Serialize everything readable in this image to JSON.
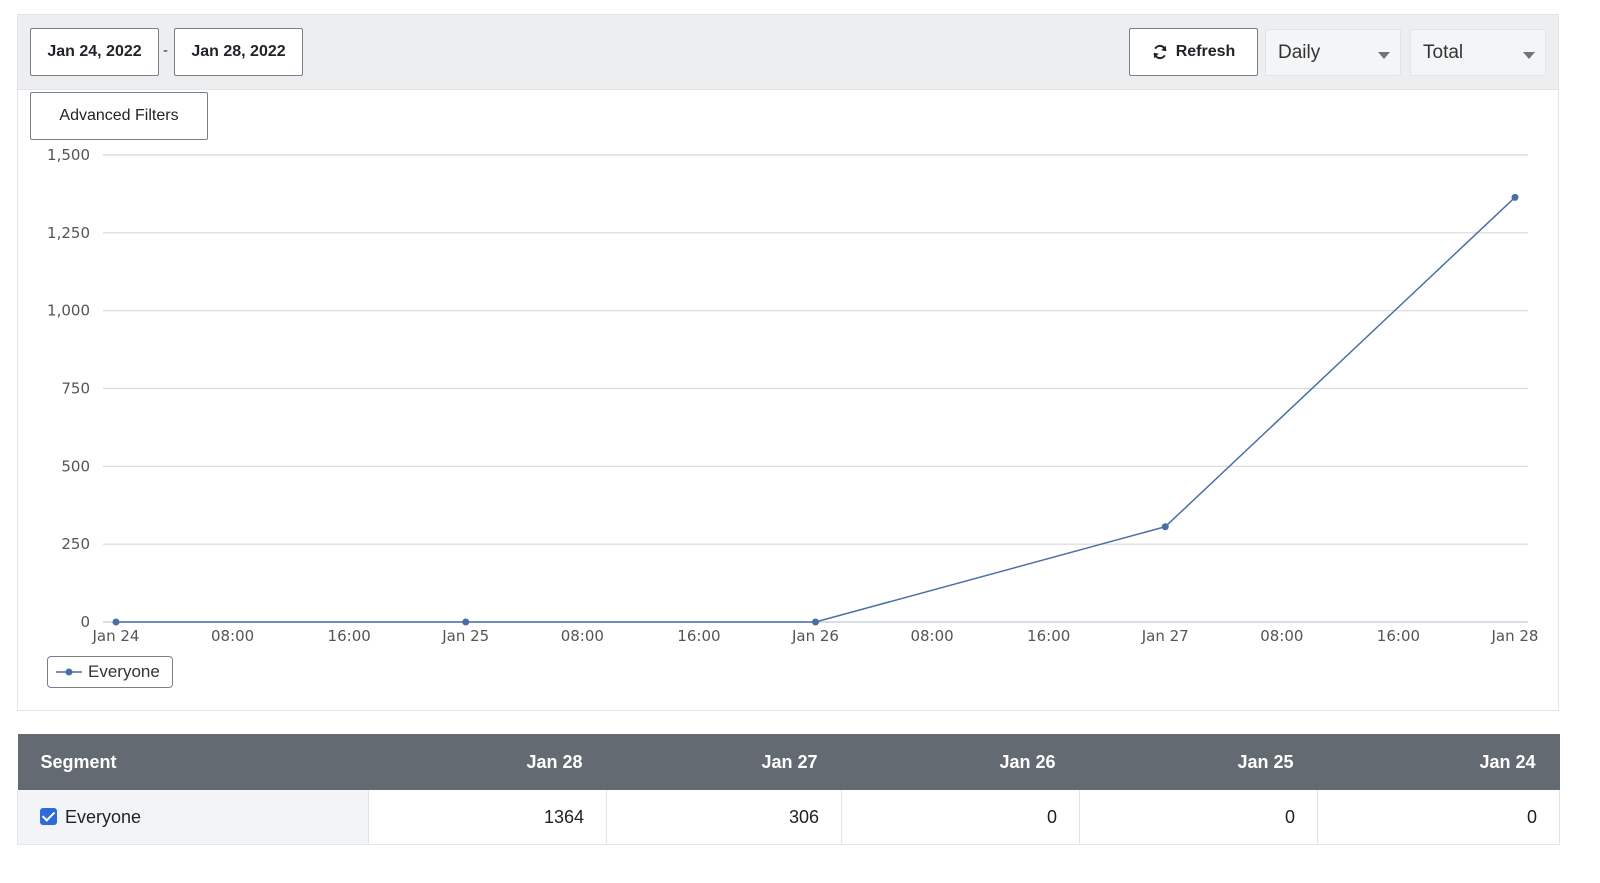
{
  "toolbar": {
    "start_date": "Jan 24, 2022",
    "date_separator": "-",
    "end_date": "Jan 28, 2022",
    "refresh_label": "Refresh",
    "interval_select": "Daily",
    "metric_select": "Total",
    "advanced_filters_label": "Advanced Filters"
  },
  "chart_data": {
    "type": "line",
    "title": "",
    "xlabel": "",
    "ylabel": "",
    "ylim": [
      0,
      1500
    ],
    "y_ticks": [
      0,
      250,
      500,
      750,
      1000,
      1250,
      1500
    ],
    "y_tick_labels": [
      "0",
      "250",
      "500",
      "750",
      "1,000",
      "1,250",
      "1,500"
    ],
    "x_tick_labels": [
      "Jan 24",
      "08:00",
      "16:00",
      "Jan 25",
      "08:00",
      "16:00",
      "Jan 26",
      "08:00",
      "16:00",
      "Jan 27",
      "08:00",
      "16:00",
      "Jan 28"
    ],
    "x": [
      "Jan 24",
      "Jan 25",
      "Jan 26",
      "Jan 27",
      "Jan 28"
    ],
    "series": [
      {
        "name": "Everyone",
        "values": [
          0,
          0,
          0,
          306,
          1364
        ],
        "color": "#4a6fa5"
      }
    ],
    "grid": true,
    "legend": "bottom-left"
  },
  "table": {
    "headers": [
      "Segment",
      "Jan 28",
      "Jan 27",
      "Jan 26",
      "Jan 25",
      "Jan 24"
    ],
    "rows": [
      {
        "segment": "Everyone",
        "checked": true,
        "values": [
          "1364",
          "306",
          "0",
          "0",
          "0"
        ]
      }
    ]
  }
}
